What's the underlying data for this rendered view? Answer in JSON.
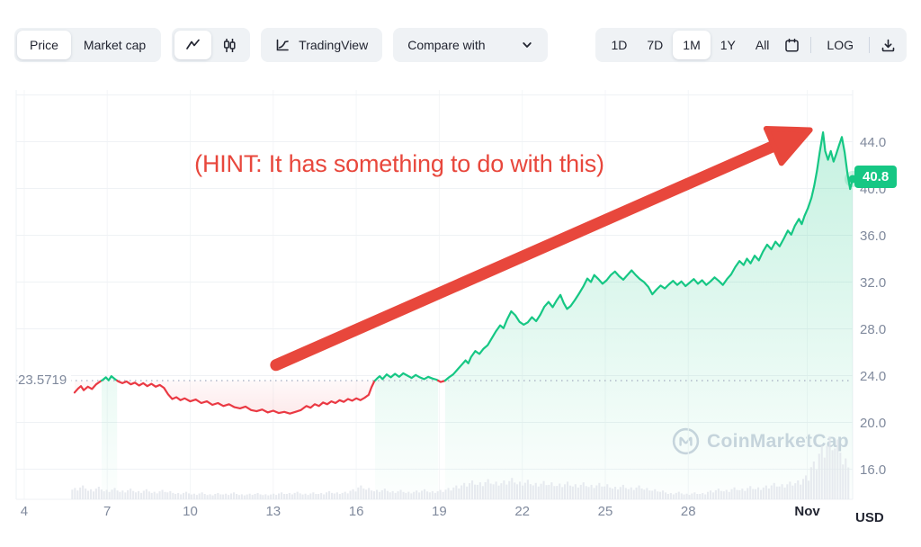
{
  "toolbar": {
    "metric_toggle": {
      "price_label": "Price",
      "market_cap_label": "Market cap",
      "selected": "Price"
    },
    "chart_type_selected": "line",
    "tradingview_label": "TradingView",
    "compare_label": "Compare with",
    "ranges": [
      "1D",
      "7D",
      "1M",
      "1Y",
      "All"
    ],
    "selected_range": "1M",
    "log_label": "LOG"
  },
  "annotation": {
    "hint_text": "(HINT: It has something to do with this)",
    "color": "#e8473c",
    "arrow": {
      "from": {
        "day": 13.1,
        "price": 24.9
      },
      "to": {
        "day": 32.4,
        "price": 45.0
      }
    }
  },
  "axis": {
    "currency_label": "USD"
  },
  "watermark": {
    "text": "CoinMarketCap"
  },
  "last_price_badge": "40.8",
  "open_price_label": "23.5719",
  "colors": {
    "up": "#16c784",
    "down": "#ea3943",
    "annotation": "#e8473c",
    "badge_bg": "#16c784",
    "axis_text": "#808a9d",
    "dark_text": "#222531",
    "grid": "#eff2f5",
    "dotted": "#aab2c4",
    "volume": "#e2e6ec",
    "watermark": "#ced5e0",
    "toolbar_bg": "#eff2f5"
  },
  "chart_data": {
    "type": "line",
    "title": "",
    "xlabel": "",
    "ylabel": "USD",
    "open_price": 23.5719,
    "last_price": 40.8,
    "y_ticks": [
      16,
      20,
      24,
      28,
      32,
      36,
      40,
      44
    ],
    "y_gridlines": [
      16,
      20,
      24,
      28,
      32,
      36,
      40,
      44,
      48
    ],
    "x_ticks": [
      {
        "day": 4,
        "label": "4"
      },
      {
        "day": 7,
        "label": "7"
      },
      {
        "day": 10,
        "label": "10"
      },
      {
        "day": 13,
        "label": "13"
      },
      {
        "day": 16,
        "label": "16"
      },
      {
        "day": 19,
        "label": "19"
      },
      {
        "day": 22,
        "label": "22"
      },
      {
        "day": 25,
        "label": "25"
      },
      {
        "day": 28,
        "label": "28"
      },
      {
        "day": 32.3,
        "label": "Nov",
        "bold": true
      }
    ],
    "xlim": [
      3.71,
      33.94
    ],
    "ylim": [
      13.42,
      48.42
    ],
    "legend": "none",
    "grid": true,
    "series": [
      {
        "name": "price_usd",
        "up_color": "#16c784",
        "down_color": "#ea3943",
        "points": [
          [
            5.82,
            22.55
          ],
          [
            5.95,
            22.9
          ],
          [
            6.05,
            23.1
          ],
          [
            6.15,
            22.75
          ],
          [
            6.3,
            23.05
          ],
          [
            6.45,
            22.85
          ],
          [
            6.6,
            23.25
          ],
          [
            6.72,
            23.45
          ],
          [
            6.85,
            23.65
          ],
          [
            6.95,
            23.85
          ],
          [
            7.05,
            23.6
          ],
          [
            7.15,
            23.95
          ],
          [
            7.28,
            23.7
          ],
          [
            7.4,
            23.5
          ],
          [
            7.55,
            23.35
          ],
          [
            7.7,
            23.5
          ],
          [
            7.85,
            23.25
          ],
          [
            8.0,
            23.4
          ],
          [
            8.15,
            23.15
          ],
          [
            8.3,
            23.35
          ],
          [
            8.45,
            23.1
          ],
          [
            8.6,
            23.3
          ],
          [
            8.75,
            23.05
          ],
          [
            8.9,
            23.2
          ],
          [
            9.05,
            22.95
          ],
          [
            9.2,
            22.4
          ],
          [
            9.35,
            22.0
          ],
          [
            9.5,
            22.15
          ],
          [
            9.65,
            21.9
          ],
          [
            9.8,
            22.05
          ],
          [
            10.0,
            21.8
          ],
          [
            10.2,
            21.95
          ],
          [
            10.4,
            21.65
          ],
          [
            10.6,
            21.8
          ],
          [
            10.8,
            21.5
          ],
          [
            11.0,
            21.65
          ],
          [
            11.2,
            21.4
          ],
          [
            11.4,
            21.55
          ],
          [
            11.6,
            21.3
          ],
          [
            11.8,
            21.2
          ],
          [
            12.0,
            21.35
          ],
          [
            12.2,
            21.05
          ],
          [
            12.4,
            20.95
          ],
          [
            12.6,
            21.1
          ],
          [
            12.8,
            20.85
          ],
          [
            13.0,
            21.0
          ],
          [
            13.2,
            20.8
          ],
          [
            13.4,
            20.9
          ],
          [
            13.6,
            20.75
          ],
          [
            13.8,
            20.9
          ],
          [
            14.0,
            21.05
          ],
          [
            14.2,
            21.4
          ],
          [
            14.35,
            21.25
          ],
          [
            14.5,
            21.55
          ],
          [
            14.65,
            21.4
          ],
          [
            14.8,
            21.7
          ],
          [
            14.95,
            21.55
          ],
          [
            15.1,
            21.8
          ],
          [
            15.25,
            21.65
          ],
          [
            15.4,
            21.9
          ],
          [
            15.55,
            21.75
          ],
          [
            15.7,
            22.0
          ],
          [
            15.85,
            21.85
          ],
          [
            16.0,
            22.05
          ],
          [
            16.15,
            21.9
          ],
          [
            16.3,
            22.1
          ],
          [
            16.45,
            22.35
          ],
          [
            16.55,
            23.0
          ],
          [
            16.65,
            23.5
          ],
          [
            16.75,
            23.75
          ],
          [
            16.85,
            23.95
          ],
          [
            16.95,
            23.7
          ],
          [
            17.1,
            24.1
          ],
          [
            17.25,
            23.85
          ],
          [
            17.4,
            24.15
          ],
          [
            17.55,
            23.9
          ],
          [
            17.7,
            24.2
          ],
          [
            17.85,
            24.0
          ],
          [
            18.0,
            23.8
          ],
          [
            18.15,
            24.05
          ],
          [
            18.3,
            23.85
          ],
          [
            18.45,
            23.7
          ],
          [
            18.6,
            23.9
          ],
          [
            18.75,
            23.75
          ],
          [
            18.9,
            23.65
          ],
          [
            19.05,
            23.45
          ],
          [
            19.2,
            23.55
          ],
          [
            19.35,
            23.85
          ],
          [
            19.5,
            24.1
          ],
          [
            19.65,
            24.5
          ],
          [
            19.8,
            24.9
          ],
          [
            19.95,
            25.3
          ],
          [
            20.05,
            25.05
          ],
          [
            20.15,
            25.6
          ],
          [
            20.3,
            26.1
          ],
          [
            20.45,
            25.85
          ],
          [
            20.6,
            26.3
          ],
          [
            20.75,
            26.6
          ],
          [
            20.9,
            27.2
          ],
          [
            21.05,
            27.8
          ],
          [
            21.2,
            28.3
          ],
          [
            21.32,
            28.05
          ],
          [
            21.45,
            28.8
          ],
          [
            21.6,
            29.5
          ],
          [
            21.75,
            29.15
          ],
          [
            21.9,
            28.6
          ],
          [
            22.05,
            28.35
          ],
          [
            22.2,
            28.55
          ],
          [
            22.35,
            29.0
          ],
          [
            22.5,
            28.65
          ],
          [
            22.65,
            29.2
          ],
          [
            22.8,
            29.9
          ],
          [
            22.95,
            30.3
          ],
          [
            23.1,
            29.85
          ],
          [
            23.25,
            30.45
          ],
          [
            23.38,
            30.9
          ],
          [
            23.5,
            30.2
          ],
          [
            23.62,
            29.7
          ],
          [
            23.75,
            29.95
          ],
          [
            23.9,
            30.45
          ],
          [
            24.05,
            31.0
          ],
          [
            24.2,
            31.6
          ],
          [
            24.35,
            32.3
          ],
          [
            24.48,
            32.0
          ],
          [
            24.6,
            32.6
          ],
          [
            24.75,
            32.25
          ],
          [
            24.9,
            31.85
          ],
          [
            25.05,
            32.15
          ],
          [
            25.2,
            32.6
          ],
          [
            25.35,
            32.9
          ],
          [
            25.5,
            32.5
          ],
          [
            25.65,
            32.2
          ],
          [
            25.8,
            32.6
          ],
          [
            25.95,
            33.0
          ],
          [
            26.1,
            32.6
          ],
          [
            26.25,
            32.25
          ],
          [
            26.4,
            32.0
          ],
          [
            26.55,
            31.6
          ],
          [
            26.7,
            30.95
          ],
          [
            26.85,
            31.35
          ],
          [
            27.0,
            31.7
          ],
          [
            27.15,
            31.45
          ],
          [
            27.3,
            31.8
          ],
          [
            27.45,
            32.1
          ],
          [
            27.6,
            31.75
          ],
          [
            27.75,
            32.05
          ],
          [
            27.9,
            31.65
          ],
          [
            28.05,
            31.95
          ],
          [
            28.2,
            32.25
          ],
          [
            28.35,
            31.85
          ],
          [
            28.5,
            32.15
          ],
          [
            28.65,
            31.75
          ],
          [
            28.8,
            32.05
          ],
          [
            28.95,
            32.4
          ],
          [
            29.1,
            32.1
          ],
          [
            29.25,
            31.75
          ],
          [
            29.4,
            32.25
          ],
          [
            29.55,
            32.65
          ],
          [
            29.7,
            33.3
          ],
          [
            29.85,
            33.8
          ],
          [
            30.0,
            33.45
          ],
          [
            30.12,
            34.0
          ],
          [
            30.25,
            33.6
          ],
          [
            30.4,
            34.25
          ],
          [
            30.55,
            33.85
          ],
          [
            30.7,
            34.6
          ],
          [
            30.85,
            35.2
          ],
          [
            31.0,
            34.8
          ],
          [
            31.15,
            35.45
          ],
          [
            31.3,
            35.05
          ],
          [
            31.45,
            35.7
          ],
          [
            31.6,
            36.4
          ],
          [
            31.72,
            36.05
          ],
          [
            31.85,
            36.8
          ],
          [
            32.0,
            37.4
          ],
          [
            32.1,
            36.95
          ],
          [
            32.2,
            37.65
          ],
          [
            32.32,
            38.3
          ],
          [
            32.45,
            39.2
          ],
          [
            32.55,
            40.2
          ],
          [
            32.65,
            41.5
          ],
          [
            32.75,
            43.1
          ],
          [
            32.87,
            44.8
          ],
          [
            32.95,
            43.2
          ],
          [
            33.05,
            42.45
          ],
          [
            33.15,
            43.2
          ],
          [
            33.25,
            42.3
          ],
          [
            33.35,
            42.95
          ],
          [
            33.45,
            43.7
          ],
          [
            33.55,
            44.4
          ],
          [
            33.65,
            43.1
          ],
          [
            33.75,
            41.3
          ],
          [
            33.85,
            39.95
          ],
          [
            33.94,
            40.8
          ]
        ]
      }
    ],
    "volume": {
      "x_range": [
        5.8,
        33.94
      ],
      "relative_heights": [
        0.18,
        0.22,
        0.16,
        0.2,
        0.15,
        0.18,
        0.14,
        0.17,
        0.13,
        0.16,
        0.12,
        0.15,
        0.13,
        0.1,
        0.12,
        0.09,
        0.11,
        0.08,
        0.1,
        0.09,
        0.11,
        0.08,
        0.09,
        0.1,
        0.08,
        0.09,
        0.11,
        0.1,
        0.12,
        0.09,
        0.11,
        0.1,
        0.13,
        0.11,
        0.12,
        0.16,
        0.22,
        0.18,
        0.15,
        0.17,
        0.13,
        0.15,
        0.12,
        0.14,
        0.16,
        0.13,
        0.15,
        0.18,
        0.22,
        0.26,
        0.3,
        0.27,
        0.32,
        0.28,
        0.3,
        0.34,
        0.28,
        0.31,
        0.26,
        0.29,
        0.27,
        0.25,
        0.28,
        0.24,
        0.27,
        0.23,
        0.26,
        0.24,
        0.2,
        0.23,
        0.19,
        0.22,
        0.18,
        0.16,
        0.14,
        0.1,
        0.12,
        0.09,
        0.11,
        0.1,
        0.14,
        0.17,
        0.15,
        0.19,
        0.17,
        0.21,
        0.19,
        0.22,
        0.26,
        0.24,
        0.28,
        0.3,
        0.38,
        0.6,
        0.85,
        1.0,
        0.95,
        0.65
      ]
    }
  }
}
